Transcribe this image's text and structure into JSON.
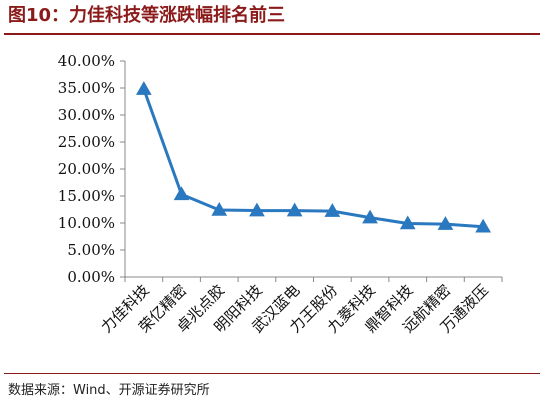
{
  "figure": {
    "title": "图10：力佳科技等涨跌幅排名前三",
    "source": "数据来源：Wind、开源证券研究所"
  },
  "chart_data": {
    "type": "line",
    "categories": [
      "力佳科技",
      "荣亿精密",
      "卓兆点胶",
      "明阳科技",
      "武汉蓝电",
      "力王股份",
      "九菱科技",
      "鼎智科技",
      "远航精密",
      "万通液压"
    ],
    "series": [
      {
        "values": [
          34.8,
          15.3,
          12.4,
          12.3,
          12.3,
          12.2,
          11.0,
          9.9,
          9.8,
          9.3
        ]
      }
    ],
    "ylim": [
      0,
      40
    ],
    "yticks": [
      0,
      5,
      10,
      15,
      20,
      25,
      30,
      35,
      40
    ],
    "ytick_labels": [
      "0.00%",
      "5.00%",
      "10.00%",
      "15.00%",
      "20.00%",
      "25.00%",
      "30.00%",
      "35.00%",
      "40.00%"
    ],
    "marker": "triangle",
    "color": "#2a78bf",
    "grid": false,
    "legend": "none"
  }
}
